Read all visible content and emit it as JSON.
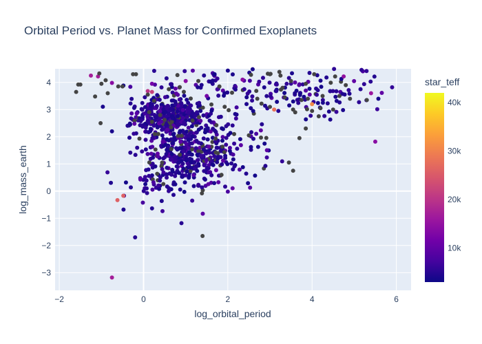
{
  "chart_data": {
    "type": "scatter",
    "title": "Orbital Period vs. Planet Mass for Confirmed Exoplanets",
    "xlabel": "log_orbital_period",
    "ylabel": "log_mass_earth",
    "xlim": [
      -2.1,
      6.35
    ],
    "ylim": [
      -3.65,
      4.5
    ],
    "x_ticks": [
      -2,
      0,
      2,
      4,
      6
    ],
    "x_tick_labels": [
      "−2",
      "0",
      "2",
      "4",
      "6"
    ],
    "y_ticks": [
      -3,
      -2,
      -1,
      0,
      1,
      2,
      3,
      4
    ],
    "y_tick_labels": [
      "−3",
      "−2",
      "−1",
      "0",
      "1",
      "2",
      "3",
      "4"
    ],
    "grid": true,
    "colorbar": {
      "title": "star_teff",
      "range": [
        3000,
        42000
      ],
      "tick_values": [
        10000,
        20000,
        30000,
        40000
      ],
      "tick_labels": [
        "10k",
        "20k",
        "30k",
        "40k"
      ],
      "colorscale": [
        "#0d0887",
        "#46039f",
        "#7201a8",
        "#9c179e",
        "#bd3786",
        "#d8576b",
        "#ed7953",
        "#fb9f3a",
        "#fdca26",
        "#f0f921"
      ]
    },
    "missing_color": "#444444",
    "points": [
      {
        "x": -1.6,
        "y": 3.65,
        "c": null
      },
      {
        "x": -1.55,
        "y": 3.92,
        "c": null
      },
      {
        "x": -1.5,
        "y": 3.92,
        "c": null
      },
      {
        "x": -1.25,
        "y": 4.25,
        "c": 17000
      },
      {
        "x": -1.15,
        "y": 3.48,
        "c": null
      },
      {
        "x": -1.08,
        "y": 4.22,
        "c": 17000
      },
      {
        "x": -1.05,
        "y": 4.33,
        "c": null
      },
      {
        "x": -1.0,
        "y": 3.95,
        "c": null
      },
      {
        "x": -1.02,
        "y": 2.5,
        "c": null
      },
      {
        "x": -0.9,
        "y": 4.08,
        "c": null
      },
      {
        "x": -0.85,
        "y": 3.6,
        "c": null
      },
      {
        "x": -0.75,
        "y": 3.98,
        "c": 14000
      },
      {
        "x": -0.75,
        "y": 2.2,
        "c": 4000
      },
      {
        "x": -0.6,
        "y": 3.85,
        "c": null
      },
      {
        "x": -0.5,
        "y": 3.85,
        "c": null
      },
      {
        "x": -0.25,
        "y": 4.3,
        "c": null
      },
      {
        "x": -0.18,
        "y": 4.3,
        "c": null
      },
      {
        "x": -0.62,
        "y": -0.33,
        "c": 26000
      },
      {
        "x": -0.48,
        "y": -0.17,
        "c": 26000
      },
      {
        "x": -0.2,
        "y": -1.7,
        "c": 5000
      },
      {
        "x": -0.75,
        "y": -3.18,
        "c": 17000
      },
      {
        "x": 0.9,
        "y": -1.18,
        "c": 5000
      },
      {
        "x": 1.4,
        "y": -1.65,
        "c": null
      },
      {
        "x": 0.1,
        "y": 3.68,
        "c": 20000
      },
      {
        "x": 0.2,
        "y": 3.65,
        "c": 22000
      },
      {
        "x": 0.1,
        "y": 3.55,
        "c": null
      },
      {
        "x": 0.2,
        "y": 2.55,
        "c": null
      },
      {
        "x": 0.35,
        "y": 2.1,
        "c": null
      },
      {
        "x": 0.5,
        "y": 2.62,
        "c": null
      },
      {
        "x": 0.6,
        "y": 3.75,
        "c": null
      },
      {
        "x": 0.65,
        "y": 2.35,
        "c": null
      },
      {
        "x": 1.3,
        "y": 4.05,
        "c": null
      },
      {
        "x": 1.8,
        "y": 3.85,
        "c": null
      },
      {
        "x": 2.1,
        "y": 3.62,
        "c": null
      },
      {
        "x": 2.15,
        "y": 2.1,
        "c": null
      },
      {
        "x": 2.5,
        "y": 2.05,
        "c": null
      },
      {
        "x": 1.85,
        "y": 0.6,
        "c": null
      },
      {
        "x": 2.55,
        "y": 4.28,
        "c": null
      },
      {
        "x": 2.7,
        "y": 3.4,
        "c": null
      },
      {
        "x": 2.8,
        "y": 3.22,
        "c": null
      },
      {
        "x": 2.95,
        "y": 4.32,
        "c": null
      },
      {
        "x": 3.0,
        "y": 4.3,
        "c": null
      },
      {
        "x": 3.0,
        "y": 3.1,
        "c": null
      },
      {
        "x": 3.1,
        "y": 3.0,
        "c": 28000
      },
      {
        "x": 3.2,
        "y": 2.95,
        "c": 5000
      },
      {
        "x": 3.25,
        "y": 4.25,
        "c": null
      },
      {
        "x": 3.3,
        "y": 3.8,
        "c": null
      },
      {
        "x": 3.35,
        "y": 3.45,
        "c": null
      },
      {
        "x": 3.5,
        "y": 4.05,
        "c": null
      },
      {
        "x": 3.55,
        "y": 3.0,
        "c": null
      },
      {
        "x": 3.6,
        "y": 2.9,
        "c": null
      },
      {
        "x": 3.7,
        "y": 1.95,
        "c": null
      },
      {
        "x": 3.45,
        "y": 1.05,
        "c": null
      },
      {
        "x": 3.55,
        "y": 0.75,
        "c": null
      },
      {
        "x": 3.75,
        "y": 3.35,
        "c": null
      },
      {
        "x": 3.85,
        "y": 3.95,
        "c": null
      },
      {
        "x": 3.9,
        "y": 3.4,
        "c": null
      },
      {
        "x": 4.0,
        "y": 3.2,
        "c": 31000
      },
      {
        "x": 4.0,
        "y": 2.95,
        "c": null
      },
      {
        "x": 4.05,
        "y": 4.3,
        "c": null
      },
      {
        "x": 4.2,
        "y": 3.05,
        "c": null
      },
      {
        "x": 4.25,
        "y": 3.5,
        "c": null
      },
      {
        "x": 4.5,
        "y": 3.0,
        "c": null
      },
      {
        "x": 4.65,
        "y": 3.5,
        "c": null
      },
      {
        "x": 4.8,
        "y": 3.9,
        "c": null
      },
      {
        "x": 4.9,
        "y": 3.4,
        "c": null
      },
      {
        "x": 5.15,
        "y": 3.75,
        "c": 5000
      },
      {
        "x": 5.3,
        "y": 3.35,
        "c": null
      },
      {
        "x": 5.4,
        "y": 3.6,
        "c": 16000
      },
      {
        "x": 5.5,
        "y": 1.82,
        "c": 14000
      },
      {
        "x": 5.9,
        "y": 3.82,
        "c": 6000
      },
      {
        "x": 4.75,
        "y": 4.22,
        "c": 15000
      },
      {
        "x": 2.35,
        "y": 4.1,
        "c": 14000
      },
      {
        "x": 1.5,
        "y": 3.5,
        "c": 12000
      },
      {
        "x": 1.0,
        "y": 4.05,
        "c": 14000
      },
      {
        "x": 0.2,
        "y": 3.95,
        "c": 12000
      }
    ],
    "cluster_seeds": [
      {
        "cx": 0.6,
        "cy": 2.7,
        "sx": 0.45,
        "sy": 0.35,
        "n": 380
      },
      {
        "cx": 1.0,
        "cy": 1.3,
        "sx": 0.55,
        "sy": 0.55,
        "n": 330
      },
      {
        "cx": 1.9,
        "cy": 1.8,
        "sx": 0.6,
        "sy": 0.7,
        "n": 90
      },
      {
        "cx": 0.3,
        "cy": 0.5,
        "sx": 0.4,
        "sy": 0.5,
        "n": 60
      },
      {
        "cx": 3.8,
        "cy": 3.6,
        "sx": 0.9,
        "sy": 0.45,
        "n": 110
      },
      {
        "cx": 1.5,
        "cy": 3.9,
        "sx": 0.9,
        "sy": 0.35,
        "n": 60
      }
    ]
  }
}
